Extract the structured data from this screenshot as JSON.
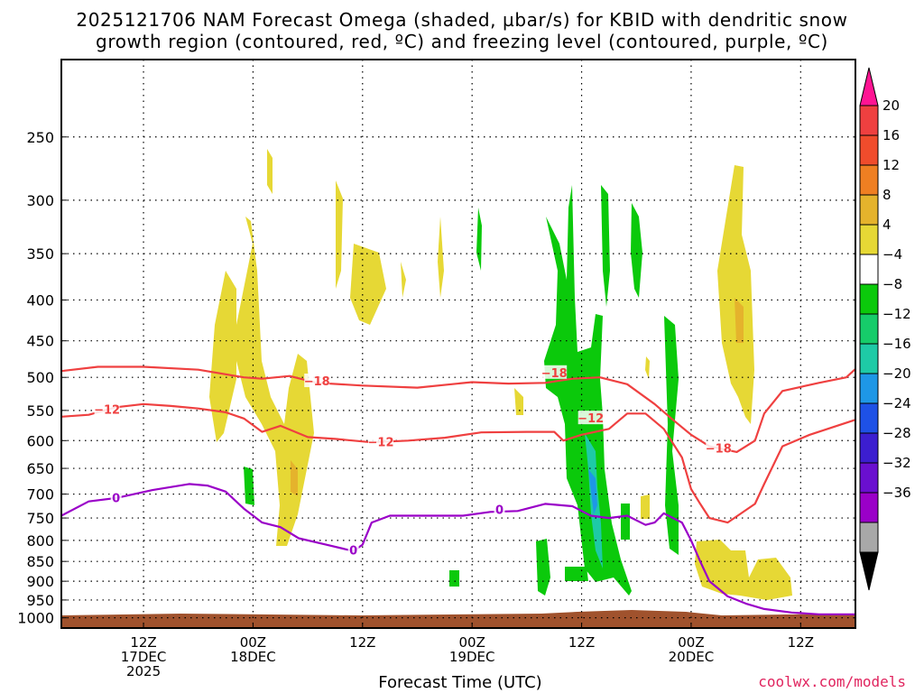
{
  "title": {
    "line1": "2025121706 NAM Forecast Omega (shaded, µbar/s) for KBID with dendritic snow",
    "line2": "growth region (contoured, red, ºC) and freezing level (contoured, purple, ºC)"
  },
  "credit": "coolwx.com/models",
  "chart_data": {
    "type": "heatmap",
    "title": "2025121706 NAM Forecast Omega (shaded, µbar/s) for KBID with dendritic snow growth region (contoured, red, ºC) and freezing level (contoured, purple, ºC)",
    "xlabel": "Forecast Time (UTC)",
    "ylabel": "",
    "yaxis_log_pressure": true,
    "ylim_hpa": [
      1030,
      200
    ],
    "yticks_hpa": [
      250,
      300,
      350,
      400,
      450,
      500,
      550,
      600,
      650,
      700,
      750,
      800,
      850,
      900,
      950,
      1000
    ],
    "xlim_hours": [
      -3,
      84
    ],
    "xticks": [
      {
        "hour": 6,
        "l1": "12Z",
        "l2": "17DEC",
        "l3": "2025"
      },
      {
        "hour": 18,
        "l1": "00Z",
        "l2": "18DEC",
        "l3": ""
      },
      {
        "hour": 30,
        "l1": "12Z",
        "l2": "",
        "l3": ""
      },
      {
        "hour": 42,
        "l1": "00Z",
        "l2": "19DEC",
        "l3": ""
      },
      {
        "hour": 54,
        "l1": "12Z",
        "l2": "",
        "l3": ""
      },
      {
        "hour": 66,
        "l1": "00Z",
        "l2": "20DEC",
        "l3": ""
      },
      {
        "hour": 78,
        "l1": "12Z",
        "l2": "",
        "l3": ""
      }
    ],
    "colorbar": {
      "labels": [
        "20",
        "16",
        "12",
        "8",
        "4",
        "−4",
        "−8",
        "−12",
        "−16",
        "−20",
        "−24",
        "−28",
        "−32",
        "−36"
      ],
      "colors": [
        "#ff1493",
        "#ef4040",
        "#f04c2c",
        "#ef7f22",
        "#e5b32c",
        "#e6d835",
        "#ffffff",
        "#0bc90b",
        "#16cc6a",
        "#1ecaa6",
        "#1e97e6",
        "#1e51e6",
        "#3c1ed0",
        "#6a0fd0",
        "#9a00c8",
        "#a8a8a8",
        "#000000"
      ]
    },
    "red_contours": [
      {
        "value": -18,
        "label": "−18",
        "points": [
          [
            -3,
            491
          ],
          [
            1,
            485
          ],
          [
            6,
            485
          ],
          [
            12,
            489
          ],
          [
            17,
            500
          ],
          [
            19,
            502
          ],
          [
            22,
            498
          ],
          [
            25,
            508
          ],
          [
            30,
            512
          ],
          [
            36,
            515
          ],
          [
            42,
            507
          ],
          [
            46,
            509
          ],
          [
            50,
            508
          ],
          [
            53,
            502
          ],
          [
            56,
            500
          ],
          [
            59,
            510
          ],
          [
            62,
            540
          ],
          [
            64,
            565
          ],
          [
            66,
            590
          ],
          [
            68,
            610
          ],
          [
            71,
            620
          ],
          [
            73,
            600
          ],
          [
            74,
            555
          ],
          [
            76,
            520
          ],
          [
            80,
            508
          ],
          [
            83,
            500
          ],
          [
            84,
            488
          ]
        ],
        "labels_at": [
          [
            25,
            505
          ],
          [
            51,
            493
          ],
          [
            69,
            613
          ]
        ]
      },
      {
        "value": -12,
        "label": "−12",
        "points": [
          [
            -3,
            560
          ],
          [
            0,
            557
          ],
          [
            3,
            545
          ],
          [
            6,
            540
          ],
          [
            9,
            543
          ],
          [
            12,
            547
          ],
          [
            15,
            553
          ],
          [
            17,
            563
          ],
          [
            19,
            585
          ],
          [
            21,
            575
          ],
          [
            24,
            594
          ],
          [
            27,
            597
          ],
          [
            31,
            603
          ],
          [
            35,
            600
          ],
          [
            39,
            595
          ],
          [
            43,
            586
          ],
          [
            48,
            585
          ],
          [
            51,
            585
          ],
          [
            52,
            600
          ],
          [
            54,
            590
          ],
          [
            57,
            580
          ],
          [
            59,
            555
          ],
          [
            61,
            555
          ],
          [
            63,
            580
          ],
          [
            65,
            630
          ],
          [
            66,
            690
          ],
          [
            67,
            720
          ],
          [
            68,
            750
          ],
          [
            70,
            760
          ],
          [
            73,
            720
          ],
          [
            74,
            680
          ],
          [
            76,
            610
          ],
          [
            79,
            590
          ],
          [
            84,
            565
          ]
        ],
        "labels_at": [
          [
            2,
            548
          ],
          [
            32,
            602
          ],
          [
            55,
            562
          ]
        ]
      }
    ],
    "purple_contours": [
      {
        "value": 0,
        "label": "0",
        "points": [
          [
            -3,
            745
          ],
          [
            0,
            715
          ],
          [
            3,
            708
          ],
          [
            7,
            692
          ],
          [
            11,
            680
          ],
          [
            13,
            683
          ],
          [
            15,
            695
          ],
          [
            17,
            730
          ],
          [
            19,
            760
          ],
          [
            21,
            770
          ],
          [
            23,
            795
          ],
          [
            26,
            810
          ],
          [
            29,
            825
          ],
          [
            30,
            810
          ],
          [
            31,
            760
          ],
          [
            33,
            745
          ],
          [
            37,
            745
          ],
          [
            41,
            745
          ],
          [
            44,
            737
          ],
          [
            47,
            735
          ],
          [
            50,
            720
          ],
          [
            53,
            725
          ],
          [
            55,
            745
          ],
          [
            57,
            750
          ],
          [
            59,
            745
          ],
          [
            61,
            765
          ],
          [
            62,
            760
          ],
          [
            63,
            740
          ],
          [
            65,
            760
          ],
          [
            66,
            800
          ],
          [
            67,
            850
          ],
          [
            68,
            900
          ],
          [
            70,
            940
          ],
          [
            72,
            960
          ],
          [
            74,
            975
          ],
          [
            77,
            985
          ],
          [
            80,
            990
          ],
          [
            84,
            990
          ]
        ],
        "labels_at": [
          [
            3,
            707
          ],
          [
            29,
            822
          ],
          [
            45,
            732
          ]
        ]
      }
    ]
  }
}
